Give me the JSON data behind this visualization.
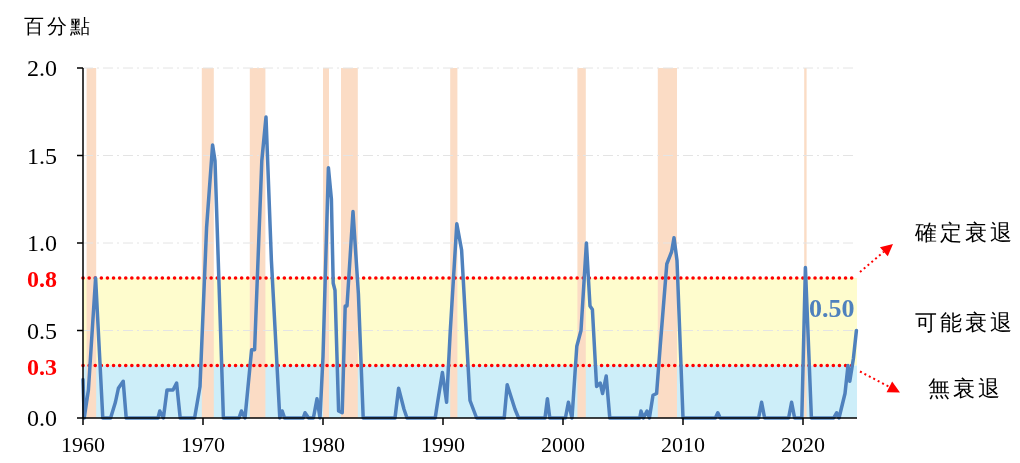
{
  "chart_data": {
    "type": "line",
    "ylabel": "百分點",
    "xlim": [
      1960,
      2024.5
    ],
    "xticks": [
      1960,
      1970,
      1980,
      1990,
      2000,
      2010,
      2020
    ],
    "ylim": [
      0,
      2
    ],
    "yticks": [
      {
        "value": 0,
        "label": "0.0"
      },
      {
        "value": 0.5,
        "label": "0.5"
      },
      {
        "value": 1,
        "label": "1.0"
      },
      {
        "value": 1.5,
        "label": "1.5"
      },
      {
        "value": 2,
        "label": "2.0"
      }
    ],
    "grid": "y",
    "series": [
      {
        "color": "#4f81bd",
        "x": [
          1960.0,
          1960.1,
          1960.45,
          1961.05,
          1961.65,
          1962.3,
          1962.7,
          1962.95,
          1963.35,
          1963.6,
          1966.25,
          1966.4,
          1966.7,
          1967.0,
          1967.5,
          1967.8,
          1968.1,
          1969.3,
          1969.75,
          1970.3,
          1970.8,
          1971.0,
          1971.7,
          1973.0,
          1973.2,
          1973.5,
          1974.05,
          1974.3,
          1974.9,
          1975.25,
          1975.7,
          1976.4,
          1976.6,
          1976.8,
          1978.35,
          1978.5,
          1978.8,
          1979.2,
          1979.5,
          1979.75,
          1980.0,
          1980.45,
          1980.7,
          1980.85,
          1981.0,
          1981.3,
          1981.6,
          1981.85,
          1982.0,
          1982.5,
          1982.95,
          1983.35,
          1986.0,
          1986.3,
          1986.75,
          1987.0,
          1989.35,
          1989.55,
          1989.95,
          1990.3,
          1990.6,
          1991.15,
          1991.55,
          1992.25,
          1992.8,
          1995.1,
          1995.35,
          1996.0,
          1996.3,
          1998.5,
          1998.7,
          1998.9,
          2000.2,
          2000.45,
          2000.75,
          2001.15,
          2001.5,
          2001.95,
          2002.25,
          2002.45,
          2002.8,
          2003.1,
          2003.3,
          2003.6,
          2003.9,
          2006.4,
          2006.5,
          2006.7,
          2007.0,
          2007.2,
          2007.5,
          2007.8,
          2008.1,
          2008.65,
          2009.05,
          2009.25,
          2009.5,
          2010.0,
          2012.7,
          2012.9,
          2013.1,
          2016.3,
          2016.55,
          2016.8,
          2018.8,
          2019.05,
          2019.3,
          2019.9,
          2020.2,
          2020.7,
          2022.55,
          2022.8,
          2023.0,
          2023.5,
          2023.75,
          2023.9,
          2024.2,
          2024.45
        ],
        "values": [
          0.22,
          0.0,
          0.16,
          0.8,
          0.0,
          0.0,
          0.09,
          0.17,
          0.21,
          0.0,
          0.0,
          0.04,
          0.0,
          0.16,
          0.16,
          0.2,
          0.0,
          0.0,
          0.18,
          1.09,
          1.56,
          1.47,
          0.0,
          0.0,
          0.04,
          0.0,
          0.39,
          0.39,
          1.47,
          1.72,
          0.9,
          0.0,
          0.04,
          0.0,
          0.0,
          0.03,
          0.0,
          0.0,
          0.11,
          0.0,
          0.35,
          1.43,
          1.25,
          0.77,
          0.73,
          0.04,
          0.03,
          0.64,
          0.64,
          1.18,
          0.71,
          0.0,
          0.0,
          0.17,
          0.05,
          0.0,
          0.0,
          0.09,
          0.26,
          0.09,
          0.49,
          1.11,
          0.96,
          0.1,
          0.0,
          0.0,
          0.19,
          0.05,
          0.0,
          0.0,
          0.11,
          0.0,
          0.0,
          0.09,
          0.0,
          0.41,
          0.5,
          1.0,
          0.64,
          0.62,
          0.18,
          0.2,
          0.14,
          0.24,
          0.0,
          0.0,
          0.04,
          0.0,
          0.04,
          0.0,
          0.13,
          0.14,
          0.41,
          0.88,
          0.95,
          1.03,
          0.9,
          0.0,
          0.0,
          0.03,
          0.0,
          0.0,
          0.09,
          0.0,
          0.0,
          0.09,
          0.0,
          0.0,
          0.86,
          0.0,
          0.0,
          0.03,
          0.0,
          0.14,
          0.3,
          0.21,
          0.34,
          0.5
        ]
      }
    ],
    "ref_lines": [
      {
        "axis": "y",
        "value": 0.8,
        "label": "0.8",
        "color": "#ff0000",
        "line_style": "dotted"
      },
      {
        "axis": "y",
        "value": 0.3,
        "label": "0.3",
        "color": "#ff0000",
        "line_style": "dotted"
      }
    ],
    "bands": [
      {
        "axis": "y",
        "from": 0.3,
        "to": 0.8,
        "color": "#fefccd"
      },
      {
        "axis": "y",
        "from": 0,
        "to": 0.3,
        "color": "#cdeef9"
      },
      {
        "axis": "x",
        "from": 1960.3,
        "to": 1961.1,
        "color": "#fbdcc5"
      },
      {
        "axis": "x",
        "from": 1969.9,
        "to": 1970.9,
        "color": "#fbdcc5"
      },
      {
        "axis": "x",
        "from": 1973.9,
        "to": 1975.2,
        "color": "#fbdcc5"
      },
      {
        "axis": "x",
        "from": 1980.0,
        "to": 1980.5,
        "color": "#fbdcc5"
      },
      {
        "axis": "x",
        "from": 1981.5,
        "to": 1982.9,
        "color": "#fbdcc5"
      },
      {
        "axis": "x",
        "from": 1990.6,
        "to": 1991.2,
        "color": "#fbdcc5"
      },
      {
        "axis": "x",
        "from": 2001.2,
        "to": 2001.9,
        "color": "#fbdcc5"
      },
      {
        "axis": "x",
        "from": 2007.9,
        "to": 2009.5,
        "color": "#fbdcc5"
      },
      {
        "axis": "x",
        "from": 2020.1,
        "to": 2020.3,
        "color": "#fbdcc5"
      }
    ],
    "annotations": [
      "確定衰退",
      "可能衰退",
      "無衰退",
      {
        "text": "0.50",
        "x": 2024.45,
        "y": 0.5
      }
    ]
  }
}
